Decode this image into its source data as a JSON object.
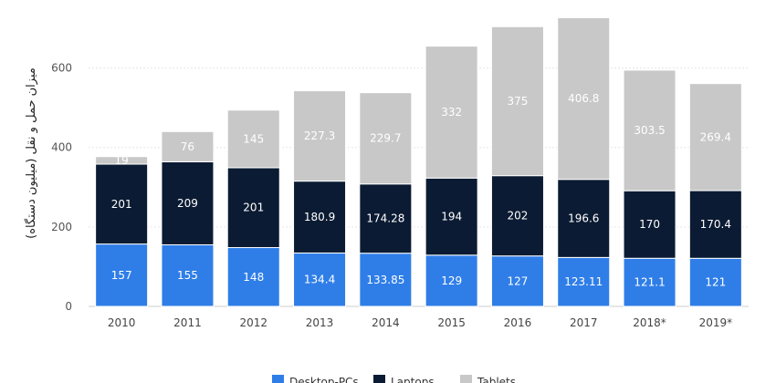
{
  "chart_data": {
    "type": "bar",
    "stacked": true,
    "title": "",
    "xlabel": "",
    "ylabel": "میزان حمل و نقل (میلیون دستگاه)",
    "categories": [
      "2010",
      "2011",
      "2012",
      "2013",
      "2014",
      "2015",
      "2016",
      "2017",
      "2018*",
      "2019*"
    ],
    "ylim": [
      0,
      700
    ],
    "yticks": [
      0,
      200,
      400,
      600
    ],
    "grid": "horizontal",
    "legend_position": "bottom",
    "series": [
      {
        "name": "Desktop-PCs",
        "color": "#2f7ee8",
        "values": [
          157,
          155,
          148,
          134.4,
          133.85,
          129,
          127,
          123.11,
          121.1,
          121
        ],
        "labels": [
          "157",
          "155",
          "148",
          "134.4",
          "133.85",
          "129",
          "127",
          "123.11",
          "121.1",
          "121"
        ]
      },
      {
        "name": "Laptops",
        "color": "#0b1b33",
        "values": [
          201,
          209,
          201,
          180.9,
          174.28,
          194,
          202,
          196.6,
          170,
          170.4
        ],
        "labels": [
          "201",
          "209",
          "201",
          "180.9",
          "174.28",
          "194",
          "202",
          "196.6",
          "170",
          "170.4"
        ]
      },
      {
        "name": "Tablets",
        "color": "#c8c8c8",
        "values": [
          19,
          76,
          145,
          227.3,
          229.7,
          332,
          375,
          406.8,
          303.5,
          269.4
        ],
        "labels": [
          "19",
          "76",
          "145",
          "227.3",
          "229.7",
          "332",
          "375",
          "406.8",
          "303.5",
          "269.4"
        ]
      }
    ]
  }
}
